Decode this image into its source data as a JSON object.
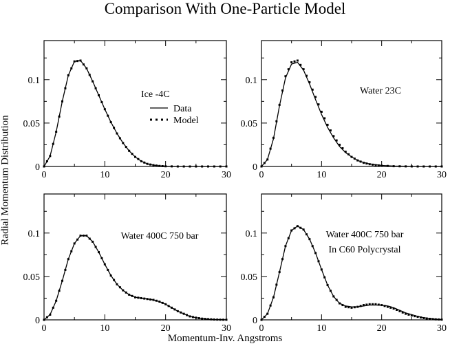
{
  "figure": {
    "title": "Comparison With One-Particle Model",
    "xlabel": "Momentum-Inv. Angstroms",
    "ylabel": "Radial Momentum Distribution"
  },
  "legend": {
    "title": "Ice -4C",
    "data_label": "Data",
    "model_label": "Model"
  },
  "chart_data": [
    {
      "type": "line",
      "title": "Ice -4C",
      "xlim": [
        0,
        30
      ],
      "ylim": [
        0,
        0.145
      ],
      "xticks": [
        0,
        10,
        20,
        30
      ],
      "yticks": [
        0,
        0.05,
        0.1
      ],
      "ytick_labels": [
        "0",
        "0.05",
        "0.1"
      ],
      "annotation": [
        "Ice -4C"
      ],
      "legend": [
        "Data",
        "Model"
      ],
      "series": [
        {
          "name": "Data",
          "style": "solid",
          "x": [
            0,
            1,
            2,
            3,
            4,
            5,
            6,
            7,
            8,
            9,
            10,
            11,
            12,
            13,
            14,
            15,
            16,
            17,
            18,
            19,
            20,
            22,
            24,
            26,
            28,
            30
          ],
          "y": [
            0,
            0.012,
            0.04,
            0.075,
            0.105,
            0.121,
            0.122,
            0.113,
            0.098,
            0.082,
            0.066,
            0.051,
            0.038,
            0.027,
            0.018,
            0.011,
            0.006,
            0.003,
            0.0015,
            0.0006,
            0.0002,
            0,
            0,
            0,
            0,
            0
          ]
        },
        {
          "name": "Model",
          "style": "dotted",
          "x": [
            0,
            1,
            2,
            3,
            4,
            5,
            6,
            7,
            8,
            9,
            10,
            11,
            12,
            13,
            14,
            15,
            16,
            17,
            18,
            19,
            20,
            22,
            24,
            26,
            28,
            30
          ],
          "y": [
            0,
            0.012,
            0.04,
            0.075,
            0.105,
            0.121,
            0.122,
            0.113,
            0.098,
            0.082,
            0.066,
            0.051,
            0.038,
            0.027,
            0.018,
            0.011,
            0.006,
            0.003,
            0.0015,
            0.0006,
            0.0002,
            0,
            0,
            0,
            0,
            0
          ]
        }
      ]
    },
    {
      "type": "line",
      "title": "Water 23C",
      "xlim": [
        0,
        30
      ],
      "ylim": [
        0,
        0.145
      ],
      "xticks": [
        0,
        10,
        20,
        30
      ],
      "yticks": [
        0,
        0.05,
        0.1
      ],
      "ytick_labels": [
        "0",
        "0.05",
        "0.1"
      ],
      "annotation": [
        "Water 23C"
      ],
      "series": [
        {
          "name": "Data",
          "style": "solid",
          "x": [
            0,
            1,
            2,
            3,
            4,
            5,
            6,
            7,
            8,
            9,
            10,
            11,
            12,
            13,
            14,
            15,
            16,
            17,
            18,
            19,
            20,
            22,
            24,
            26,
            28,
            30
          ],
          "y": [
            0,
            0.008,
            0.032,
            0.07,
            0.102,
            0.118,
            0.12,
            0.111,
            0.095,
            0.077,
            0.06,
            0.045,
            0.033,
            0.023,
            0.016,
            0.011,
            0.007,
            0.0045,
            0.003,
            0.002,
            0.0012,
            0.0005,
            0.0002,
            0,
            0,
            0
          ]
        },
        {
          "name": "Model",
          "style": "dotted",
          "x": [
            0,
            1,
            2,
            3,
            4,
            5,
            6,
            7,
            8,
            9,
            10,
            11,
            12,
            13,
            14,
            15,
            16,
            17,
            18,
            19,
            20,
            22,
            24,
            26,
            28,
            30
          ],
          "y": [
            0,
            0.008,
            0.033,
            0.071,
            0.104,
            0.12,
            0.122,
            0.112,
            0.097,
            0.08,
            0.063,
            0.048,
            0.035,
            0.025,
            0.017,
            0.011,
            0.007,
            0.0042,
            0.0026,
            0.0015,
            0.0009,
            0.0003,
            0.0001,
            0,
            0,
            0
          ]
        }
      ]
    },
    {
      "type": "line",
      "title": "Water 400C 750 bar",
      "xlim": [
        0,
        30
      ],
      "ylim": [
        0,
        0.145
      ],
      "xticks": [
        0,
        10,
        20,
        30
      ],
      "yticks": [
        0,
        0.05,
        0.1
      ],
      "ytick_labels": [
        "0",
        "0.05",
        "0.1"
      ],
      "annotation": [
        "Water 400C 750 bar"
      ],
      "series": [
        {
          "name": "Data",
          "style": "solid",
          "x": [
            0,
            1,
            2,
            3,
            4,
            5,
            6,
            7,
            8,
            9,
            10,
            11,
            12,
            13,
            14,
            15,
            16,
            17,
            18,
            19,
            20,
            21,
            22,
            23,
            24,
            25,
            26,
            27,
            28,
            29,
            30
          ],
          "y": [
            0,
            0.006,
            0.022,
            0.045,
            0.07,
            0.088,
            0.097,
            0.097,
            0.09,
            0.078,
            0.064,
            0.051,
            0.041,
            0.034,
            0.029,
            0.026,
            0.025,
            0.024,
            0.023,
            0.021,
            0.018,
            0.014,
            0.01,
            0.007,
            0.004,
            0.0025,
            0.0014,
            0.0008,
            0.0004,
            0.0002,
            0.0001
          ]
        },
        {
          "name": "Model",
          "style": "dotted",
          "x": [
            0,
            1,
            2,
            3,
            4,
            5,
            6,
            7,
            8,
            9,
            10,
            11,
            12,
            13,
            14,
            15,
            16,
            17,
            18,
            19,
            20,
            21,
            22,
            23,
            24,
            25,
            26,
            27,
            28,
            29,
            30
          ],
          "y": [
            0,
            0.006,
            0.022,
            0.045,
            0.07,
            0.088,
            0.097,
            0.097,
            0.09,
            0.078,
            0.064,
            0.051,
            0.041,
            0.034,
            0.029,
            0.026,
            0.025,
            0.024,
            0.023,
            0.021,
            0.018,
            0.014,
            0.01,
            0.007,
            0.004,
            0.0025,
            0.0014,
            0.0008,
            0.0004,
            0.0002,
            0.0001
          ]
        }
      ]
    },
    {
      "type": "line",
      "title": "Water 400C 750 bar In C60 Polycrystal",
      "xlim": [
        0,
        30
      ],
      "ylim": [
        0,
        0.145
      ],
      "xticks": [
        0,
        10,
        20,
        30
      ],
      "yticks": [
        0,
        0.05,
        0.1
      ],
      "ytick_labels": [
        "0",
        "0.05",
        "0.1"
      ],
      "annotation": [
        "Water 400C 750 bar",
        "In C60 Polycrystal"
      ],
      "series": [
        {
          "name": "Data",
          "style": "solid",
          "x": [
            0,
            1,
            2,
            3,
            4,
            5,
            6,
            7,
            8,
            9,
            10,
            11,
            12,
            13,
            14,
            15,
            16,
            17,
            18,
            19,
            20,
            21,
            22,
            23,
            24,
            25,
            26,
            27,
            28,
            29,
            30
          ],
          "y": [
            0,
            0.007,
            0.026,
            0.055,
            0.085,
            0.103,
            0.108,
            0.104,
            0.093,
            0.077,
            0.058,
            0.04,
            0.027,
            0.019,
            0.016,
            0.015,
            0.015,
            0.016,
            0.017,
            0.017,
            0.017,
            0.016,
            0.014,
            0.011,
            0.008,
            0.006,
            0.004,
            0.0025,
            0.0015,
            0.0008,
            0.0004
          ]
        },
        {
          "name": "Model",
          "style": "dotted",
          "x": [
            0,
            1,
            2,
            3,
            4,
            5,
            6,
            7,
            8,
            9,
            10,
            11,
            12,
            13,
            14,
            15,
            16,
            17,
            18,
            19,
            20,
            21,
            22,
            23,
            24,
            25,
            26,
            27,
            28,
            29,
            30
          ],
          "y": [
            0,
            0.007,
            0.026,
            0.055,
            0.085,
            0.103,
            0.108,
            0.104,
            0.093,
            0.077,
            0.058,
            0.04,
            0.027,
            0.019,
            0.015,
            0.014,
            0.015,
            0.017,
            0.018,
            0.018,
            0.017,
            0.015,
            0.013,
            0.01,
            0.007,
            0.005,
            0.0035,
            0.002,
            0.0012,
            0.0006,
            0.0003
          ]
        }
      ]
    }
  ]
}
